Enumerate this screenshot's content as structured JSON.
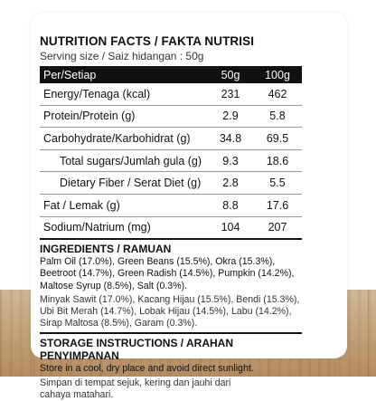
{
  "panel": {
    "title": "NUTRITION FACTS / FAKTA NUTRISI",
    "serving": "Serving size / Saiz hidangan : 50g"
  },
  "table": {
    "header": {
      "label": "Per/Setiap",
      "col1": "50g",
      "col2": "100g"
    },
    "rows": [
      {
        "label": "Energy/Tenaga (kcal)",
        "v50": "231",
        "v100": "462"
      },
      {
        "label": "Protein/Protein (g)",
        "v50": "2.9",
        "v100": "5.8"
      },
      {
        "label": "Carbohydrate/Karbohidrat (g)",
        "v50": "34.8",
        "v100": "69.5"
      },
      {
        "label": "Total sugars/Jumlah gula (g)",
        "v50": "9.3",
        "v100": "18.6"
      },
      {
        "label": "Dietary Fiber / Serat Diet (g)",
        "v50": "2.8",
        "v100": "5.5"
      },
      {
        "label": "Fat / Lemak (g)",
        "v50": "8.8",
        "v100": "17.6"
      },
      {
        "label": "Sodium/Natrium (mg)",
        "v50": "104",
        "v100": "207"
      }
    ]
  },
  "ingredients": {
    "title": "INGREDIENTS / RAMUAN",
    "english": "Palm Oil (17.0%), Green Beans (15.5%), Okra (15.3%), Beetroot (14.7%), Green Radish (14.5%), Pumpkin (14.2%), Maltose Syrup (8.5%), Salt (0.3%).",
    "malay": "Minyak Sawit (17.0%), Kacang Hijau (15.5%), Bendi (15.3%), Ubi Bit Merah (14.7%), Lobak Hijau (14.5%), Labu (14.2%), Sirap Maltosa (8.5%), Garam (0.3%)."
  },
  "storage": {
    "title": "STORAGE INSTRUCTIONS / ARAHAN PENYIMPANAN",
    "english": "Store in a cool, dry place and avoid direct sunlight.",
    "malay_line1": "Simpan di tempat sejuk, kering dan jauhi dari",
    "malay_line2": "cahaya matahari."
  },
  "colors": {
    "header_bg": "#111111",
    "header_text": "#ffffff",
    "wood": "#c3a47c"
  }
}
